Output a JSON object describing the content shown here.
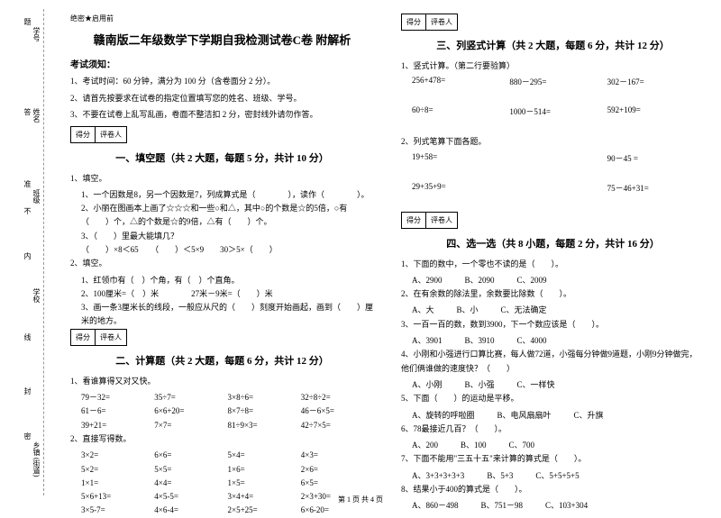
{
  "spine": {
    "items": [
      "学号",
      "姓名",
      "班级",
      "学校",
      "乡镇 (街道)"
    ],
    "brackets": [
      "题",
      "答",
      "准",
      "不",
      "内",
      "线",
      "封",
      "密"
    ]
  },
  "secret": "绝密★启用前",
  "title": "赣南版二年级数学下学期自我检测试卷C卷 附解析",
  "notice": {
    "heading": "考试须知：",
    "items": [
      "1、考试时间：60 分钟，满分为 100 分（含卷面分 2 分）。",
      "2、请首先按要求在试卷的指定位置填写您的姓名、班级、学号。",
      "3、不要在试卷上乱写乱画，卷面不整洁扣 2 分，密封线外请勿作答。"
    ]
  },
  "scorebox": {
    "score": "得分",
    "reviewer": "评卷人"
  },
  "sections": {
    "s1": {
      "title": "一、填空题（共 2 大题，每题 5 分，共计 10 分）",
      "q1": "1、填空。",
      "q1_1": "1、一个因数是8，另一个因数是7，列成算式是（　　　　），读作（　　　　）。",
      "q1_2": "2、小丽在图画本上画了☆☆☆和一些○和△，其中○的个数是☆的5倍，○有（　　）个，△的个数是☆的9倍，△有（　　）个。",
      "q1_3": "3、（　　）里最大能填几？",
      "q1_3b": "（　　）×8＜65　　（　　）＜5×9　　30＞5×（　　）",
      "q2": "2、填空。",
      "q2_1": "1、红领巾有（　）个角，有（　）个直角。",
      "q2_2": "2、100厘米=（　）米　　　　27米－9米=（　　）米",
      "q2_3": "3、画一条3厘米长的线段，一般应从尺的（　　）刻度开始画起，画到（　　）厘米的地方。"
    },
    "s2": {
      "title": "二、计算题（共 2 大题，每题 6 分，共计 12 分）",
      "q1": "1、看谁算得又对又快。",
      "rows1": [
        [
          "79－32=",
          "35÷7=",
          "3×8÷6=",
          "32÷8÷2="
        ],
        [
          "61－6=",
          "6×6+20=",
          "8×7÷8=",
          "46－6×5="
        ],
        [
          "39+21=",
          "7×7=",
          "81÷9×3=",
          "42÷7×5="
        ]
      ],
      "q2": "2、直接写得数。",
      "rows2": [
        [
          "3×2=",
          "6×6=",
          "5×4=",
          "4×3="
        ],
        [
          "5×2=",
          "5×5=",
          "1×6=",
          "2×6="
        ],
        [
          "1×1=",
          "4×4=",
          "1×5=",
          "6×5="
        ],
        [
          "5×6+13=",
          "4×5-5=",
          "3×4+4=",
          "2×3+30="
        ],
        [
          "3×5-7=",
          "4×6-4=",
          "2×5+25=",
          "6×6-20="
        ]
      ]
    },
    "s3": {
      "title": "三、列竖式计算（共 2 大题，每题 6 分，共计 12 分）",
      "q1": "1、竖式计算。（第二行要验算）",
      "rows1": [
        [
          "256+478=",
          "880－295=",
          "302－167="
        ],
        [
          "60÷8=",
          "1000－514=",
          "592+109="
        ]
      ],
      "q2": "2、列式笔算下面各题。",
      "rows2": [
        [
          "19+58=",
          "",
          "90－45 ="
        ],
        [
          "29+35+9=",
          "",
          "75－46+31="
        ]
      ]
    },
    "s4": {
      "title": "四、选一选（共 8 小题，每题 2 分，共计 16 分）",
      "items": [
        {
          "q": "1、下面的数中，一个零也不读的是（　　）。",
          "opts": [
            "A、2900",
            "B、2090",
            "C、2009"
          ]
        },
        {
          "q": "2、在有余数的除法里，余数要比除数（　　）。",
          "opts": [
            "A、大",
            "B、小",
            "C、无法确定"
          ]
        },
        {
          "q": "3、一百一百的数，数到3900，下一个数应该是（　　）。",
          "opts": [
            "A、3901",
            "B、3910",
            "C、4000"
          ]
        },
        {
          "q": "4、小刚和小强进行口算比赛，每人做72道，小强每分钟做9道题，小刚9分钟做完，他们俩谁做的速度快？（　　）",
          "opts": [
            "A、小刚",
            "B、小强",
            "C、一样快"
          ]
        },
        {
          "q": "5、下面（　　）的运动是平移。",
          "opts": [
            "A、旋转的呼啦圈",
            "B、电风扇扇叶",
            "C、升旗"
          ]
        },
        {
          "q": "6、78最接近几百？（　　）。",
          "opts": [
            "A、200",
            "B、100",
            "C、700"
          ]
        },
        {
          "q": "7、下面不能用\"三五十五\"来计算的算式是（　　）。",
          "opts": [
            "A、3+3+3+3+3",
            "B、5+3",
            "C、5+5+5+5"
          ]
        },
        {
          "q": "8、结果小于400的算式是（　　）。",
          "opts": [
            "A、860－498",
            "B、751－98",
            "C、103+304"
          ]
        }
      ]
    }
  },
  "footer": "第 1 页 共 4 页"
}
